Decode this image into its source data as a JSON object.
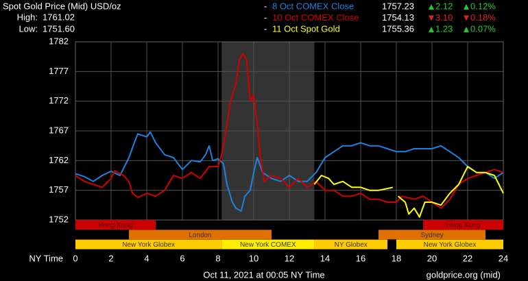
{
  "chart_data": {
    "type": "line",
    "title": "Spot Gold Price (Mid) USD/oz",
    "high_label": "High:",
    "high": {
      "value": 1761.02,
      "label": "1761.02"
    },
    "low_label": "Low:",
    "low": {
      "value": 1751.6,
      "label": "1751.60"
    },
    "up_color": "#22cc22",
    "down_color": "#dd2222",
    "series": [
      {
        "name": "8 Oct COMEX Close",
        "color": "#1e82e0",
        "close": {
          "value": 1757.23,
          "label": "1757.23"
        },
        "change": {
          "value": 2.12,
          "label": "2.12"
        },
        "change_pct": {
          "value": 0.12,
          "label": "0.12%"
        },
        "x": [
          0,
          0.5,
          1,
          1.5,
          2,
          2.5,
          3,
          3.3,
          3.5,
          4,
          4.2,
          4.5,
          5,
          5.5,
          6,
          6.5,
          7,
          7.3,
          7.5,
          7.7,
          8,
          8.3,
          8.5,
          8.8,
          9,
          9.3,
          9.5,
          9.8,
          10,
          10.2,
          10.5,
          11,
          11.5,
          12,
          12.5,
          13,
          13.5,
          14,
          14.5,
          15,
          15.5,
          16,
          16.5,
          17,
          17.5,
          18,
          18.5,
          19,
          19.5,
          20,
          20.5,
          21,
          21.5,
          22,
          22.5,
          23,
          23.5,
          24
        ],
        "values": [
          1759.8,
          1759.3,
          1758.5,
          1759.5,
          1760.2,
          1759.5,
          1762.5,
          1765,
          1766.5,
          1766,
          1766.8,
          1765,
          1763,
          1762.5,
          1760.5,
          1762,
          1761.8,
          1763,
          1764.5,
          1762,
          1762.3,
          1761.5,
          1758,
          1755,
          1754,
          1753.5,
          1756,
          1757,
          1760,
          1762.5,
          1760,
          1759,
          1758.5,
          1759.5,
          1758.5,
          1758.5,
          1760,
          1762.5,
          1763.5,
          1764.5,
          1764.5,
          1765,
          1764.5,
          1764.5,
          1764,
          1763.5,
          1763.5,
          1764,
          1764,
          1764,
          1764.5,
          1763.5,
          1762.5,
          1761,
          1760,
          1760,
          1759,
          1760
        ]
      },
      {
        "name": "10 Oct COMEX Close",
        "color": "#d40000",
        "close": {
          "value": 1754.13,
          "label": "1754.13"
        },
        "change": {
          "value": -3.1,
          "label": "3.10"
        },
        "change_pct": {
          "value": -0.18,
          "label": "0.18%"
        },
        "x": [
          0,
          0.5,
          1,
          1.5,
          2,
          2.2,
          2.7,
          3,
          3.2,
          3.5,
          4,
          4.5,
          5,
          5.5,
          6,
          6.5,
          7,
          7.5,
          8,
          8.2,
          8.5,
          8.7,
          9,
          9.2,
          9.4,
          9.6,
          9.8,
          10,
          10.2,
          10.4,
          10.6,
          11,
          11.5,
          12,
          12.5,
          13,
          13.5,
          14,
          14.5,
          15,
          15.5,
          16,
          16.5,
          17,
          17.5,
          18,
          18.3,
          19,
          19.5,
          20,
          20.5,
          21,
          21.5,
          22,
          22.5,
          23,
          23.5,
          24
        ],
        "values": [
          1759.5,
          1758.5,
          1758,
          1757.5,
          1759,
          1760.3,
          1759.5,
          1758.5,
          1756.5,
          1755.8,
          1756.5,
          1756,
          1757,
          1759.5,
          1759,
          1760,
          1759,
          1761,
          1761,
          1763,
          1768,
          1772,
          1775,
          1779,
          1780,
          1779,
          1772,
          1773,
          1768,
          1762,
          1758.5,
          1759.5,
          1759,
          1757.5,
          1759,
          1757.5,
          1758.5,
          1757,
          1757,
          1756,
          1756,
          1756.5,
          1755.5,
          1755.5,
          1755,
          1755,
          1756,
          1755.5,
          1756,
          1755,
          1754,
          1755.5,
          1758,
          1759,
          1759.5,
          1760,
          1760.5,
          1760
        ]
      },
      {
        "name": "11 Oct Spot Gold",
        "color": "#ffff00",
        "close": {
          "value": 1755.36,
          "label": "1755.36"
        },
        "change": {
          "value": 1.23,
          "label": "1.23"
        },
        "change_pct": {
          "value": 0.07,
          "label": "0.07%"
        },
        "x": [
          13.4,
          13.8,
          14.2,
          14.5,
          15,
          15.5,
          16,
          16.5,
          17,
          17.5,
          17.8,
          17.9,
          18.1,
          18.5,
          18.7,
          19,
          19.3,
          19.6,
          20,
          20.5,
          21,
          21.5,
          22,
          22.5,
          23,
          23.5,
          24
        ],
        "values": [
          1758,
          1759.5,
          1759,
          1758,
          1758.5,
          1757.5,
          1757.5,
          1757,
          1757,
          1757.3,
          1757.5,
          null,
          1756,
          1755,
          1753,
          1754,
          1752.5,
          1755,
          1755,
          1754.5,
          1756.5,
          1758,
          1761,
          1760,
          1760,
          1759.5,
          1756.5
        ]
      }
    ],
    "highlight": [
      8.2,
      13.4
    ],
    "xlim": [
      0,
      24
    ],
    "xticks": [
      0,
      2,
      4,
      6,
      8,
      10,
      12,
      14,
      16,
      18,
      20,
      22,
      24
    ],
    "ylim": [
      1752,
      1782
    ],
    "yticks": [
      1752,
      1757,
      1762,
      1767,
      1772,
      1777,
      1782
    ],
    "grid": true,
    "x_label": "NY Time",
    "sessions": [
      [
        {
          "name": "Hong Kong",
          "start": 0,
          "end": 4.5,
          "color": "#cc0000"
        },
        {
          "name": "Hong Kong",
          "start": 19.5,
          "end": 24,
          "color": "#cc0000"
        }
      ],
      [
        {
          "name": "London",
          "start": 3,
          "end": 11,
          "color": "#e07000"
        },
        {
          "name": "Sydney",
          "start": 17,
          "end": 23,
          "color": "#e07000"
        }
      ],
      [
        {
          "name": "New York Globex",
          "start": 0,
          "end": 8.2,
          "color": "#ffcc00"
        },
        {
          "name": "New York COMEX",
          "start": 8.2,
          "end": 13.4,
          "color": "#ffee00"
        },
        {
          "name": "NY Globex",
          "start": 13.4,
          "end": 17.5,
          "color": "#ffcc00"
        },
        {
          "name": "New York Globex",
          "start": 18,
          "end": 24,
          "color": "#ffcc00"
        }
      ]
    ],
    "footer": "Oct 11, 2021 at 00:05 NY Time",
    "source": "goldprice.org (mid)"
  }
}
